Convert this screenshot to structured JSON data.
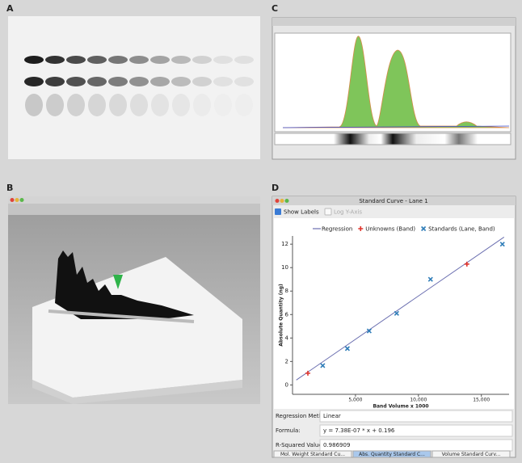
{
  "panels": {
    "a": {
      "label": "A"
    },
    "b": {
      "label": "B"
    },
    "c": {
      "label": "C"
    },
    "d": {
      "label": "D",
      "window_title": "Standard Curve - Lane 1",
      "show_labels": "Show Labels",
      "log_y": "Log Y-Axis",
      "fields": [
        {
          "label": "Regression Method:",
          "value": "Linear"
        },
        {
          "label": "Formula:",
          "value": "y = 7.38E-07 * x + 0.196"
        },
        {
          "label": "R-Squared Value",
          "value": "0.986909"
        }
      ],
      "tabs": [
        "Mol. Weight Standard Cu...",
        "Abs. Quantity Standard C...",
        "Volume Standard Curv..."
      ]
    }
  },
  "chart_data": {
    "type": "scatter",
    "x_label": "Band Volume x 1000",
    "y_label": "Absolute Quantity (ng)",
    "xlim": [
      0,
      17200
    ],
    "ylim": [
      -0.8,
      12.7
    ],
    "xticks": [
      {
        "value": 5000,
        "label": "5,000"
      },
      {
        "value": 10000,
        "label": "10,000"
      },
      {
        "value": 15000,
        "label": "15,000"
      }
    ],
    "yticks": [
      0,
      2,
      4,
      6,
      8,
      10,
      12
    ],
    "series": [
      {
        "name": "Regression",
        "type": "line",
        "color": "#6b6fb0",
        "x": [
          300,
          16800
        ],
        "values": [
          0.42,
          12.6
        ]
      },
      {
        "name": "Unknowns (Band)",
        "type": "plus",
        "color": "#e0342c",
        "x": [
          1220,
          13850
        ],
        "values": [
          1.0,
          10.3
        ]
      },
      {
        "name": "Standards (Lane, Band)",
        "type": "cross",
        "color": "#2f7db8",
        "x": [
          2400,
          4360,
          6090,
          8270,
          10960,
          16670
        ],
        "values": [
          1.65,
          3.1,
          4.6,
          6.1,
          9.0,
          12.0
        ]
      }
    ]
  }
}
